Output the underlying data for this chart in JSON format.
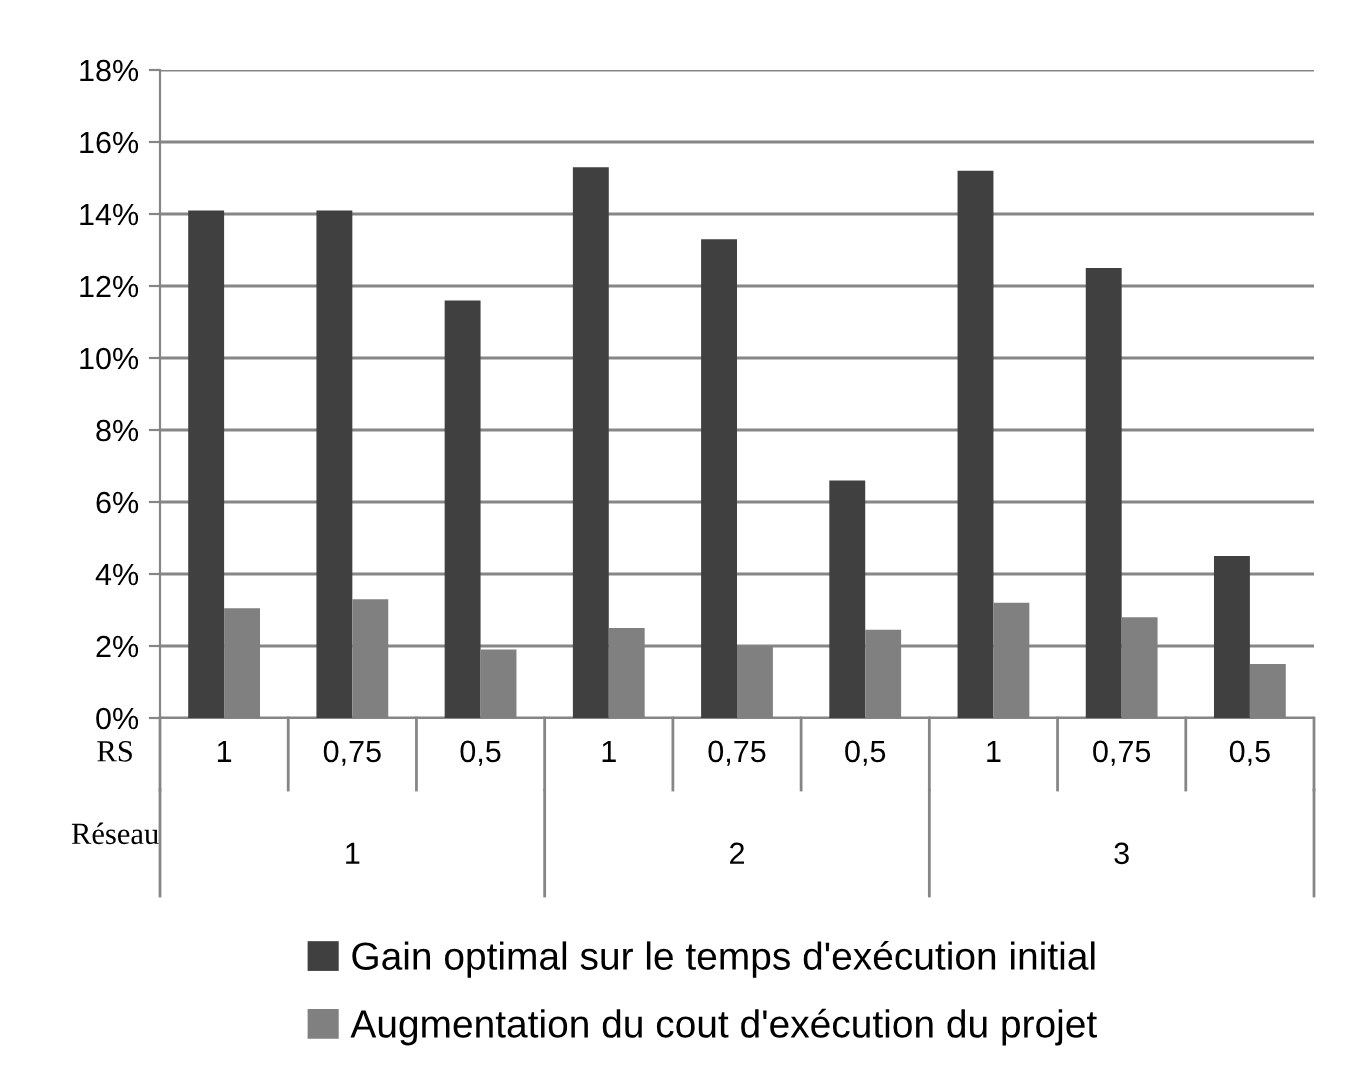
{
  "chart_data": {
    "type": "bar",
    "categories": [
      "1",
      "0,75",
      "0,5",
      "1",
      "0,75",
      "0,5",
      "1",
      "0,75",
      "0,5"
    ],
    "series": [
      {
        "name": "Gain optimal sur le temps d'exécution initial",
        "color": "#404040",
        "values": [
          14.1,
          14.1,
          11.6,
          15.3,
          13.3,
          6.6,
          15.2,
          12.5,
          4.5
        ]
      },
      {
        "name": "Augmentation du cout d'exécution du projet",
        "color": "#808080",
        "values": [
          3.05,
          3.3,
          1.9,
          2.5,
          2.0,
          2.45,
          3.2,
          2.8,
          1.5
        ]
      }
    ],
    "ylim": [
      0,
      18
    ],
    "yticks": [
      {
        "value": 0,
        "label": "0%"
      },
      {
        "value": 2,
        "label": "2%"
      },
      {
        "value": 4,
        "label": "4%"
      },
      {
        "value": 6,
        "label": "6%"
      },
      {
        "value": 8,
        "label": "8%"
      },
      {
        "value": 10,
        "label": "10%"
      },
      {
        "value": 12,
        "label": "12%"
      },
      {
        "value": 14,
        "label": "14%"
      },
      {
        "value": 16,
        "label": "16%"
      },
      {
        "value": 18,
        "label": "18%"
      }
    ],
    "annotations": [
      "RS",
      "Réseau",
      "1",
      "2",
      "3"
    ],
    "grid": "y",
    "legend": "bottom"
  }
}
